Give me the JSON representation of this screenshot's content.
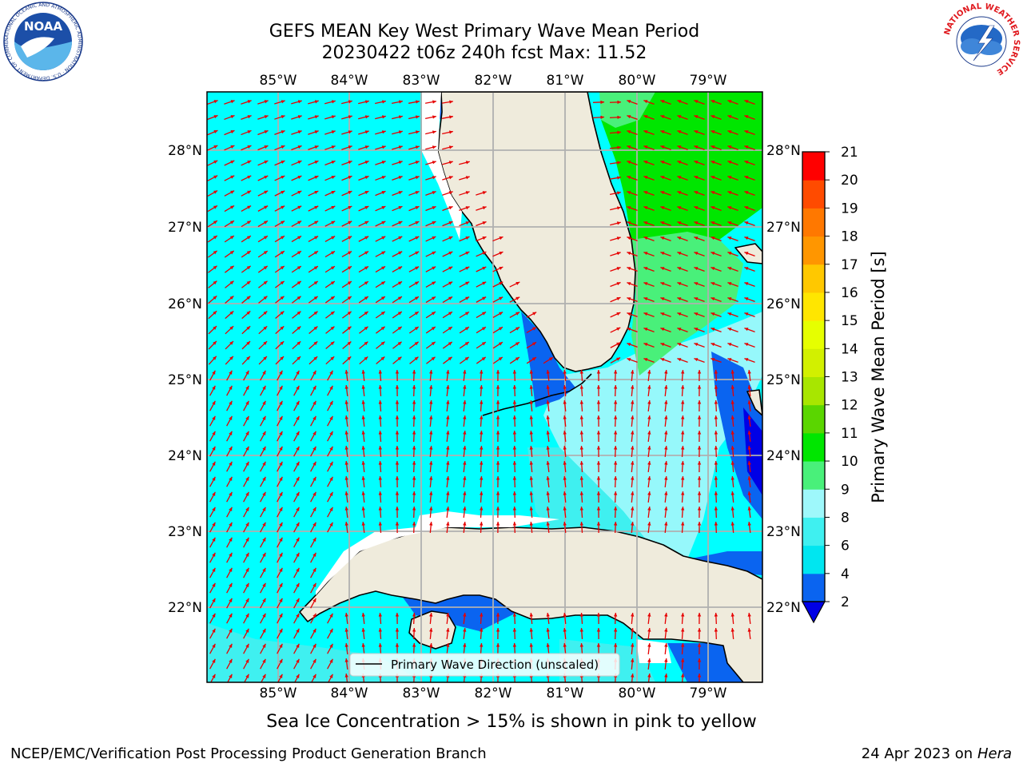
{
  "title_line1": "GEFS MEAN Key West Primary Wave Mean Period",
  "title_line2": "20230422 t06z 240h fcst   Max: 11.52",
  "longitude_labels": [
    "85°W",
    "84°W",
    "83°W",
    "82°W",
    "81°W",
    "80°W",
    "79°W"
  ],
  "latitude_labels": [
    "28°N",
    "27°N",
    "26°N",
    "25°N",
    "24°N",
    "23°N",
    "22°N"
  ],
  "colorbar": {
    "label": "Primary Wave Mean Period [s]",
    "ticks": [
      "2",
      "4",
      "6",
      "8",
      "9",
      "10",
      "11",
      "12",
      "13",
      "14",
      "15",
      "16",
      "17",
      "18",
      "19",
      "20",
      "21"
    ],
    "colors": [
      "#0a64f0",
      "#00e6f0",
      "#3ff0f0",
      "#9ef8fb",
      "#49f07a",
      "#00e600",
      "#5ad600",
      "#a8e600",
      "#d2f000",
      "#e6ff00",
      "#ffe600",
      "#ffc800",
      "#ff9600",
      "#ff7800",
      "#ff4b00",
      "#ff0000"
    ],
    "extend_color": "#0000e6"
  },
  "legend_label": "Primary Wave Direction (unscaled)",
  "arrow_color": "#e60000",
  "land_color": "#efebdc",
  "ocean_color": "#00ffff",
  "sea_ice_note": "Sea Ice Concentration > 15% is shown in pink to yellow",
  "credit": "NCEP/EMC/Verification Post Processing Product Generation Branch",
  "date_prefix": "24 Apr 2023 on",
  "date_host": "Hera",
  "logo_noaa_text": "NOAA",
  "logo_noaa_ring": "NATIONAL OCEANIC AND ATMOSPHERIC ADMINISTRATION · U.S. DEPARTMENT OF COMMERCE",
  "logo_nws_ring": "NATIONAL WEATHER SERVICE"
}
